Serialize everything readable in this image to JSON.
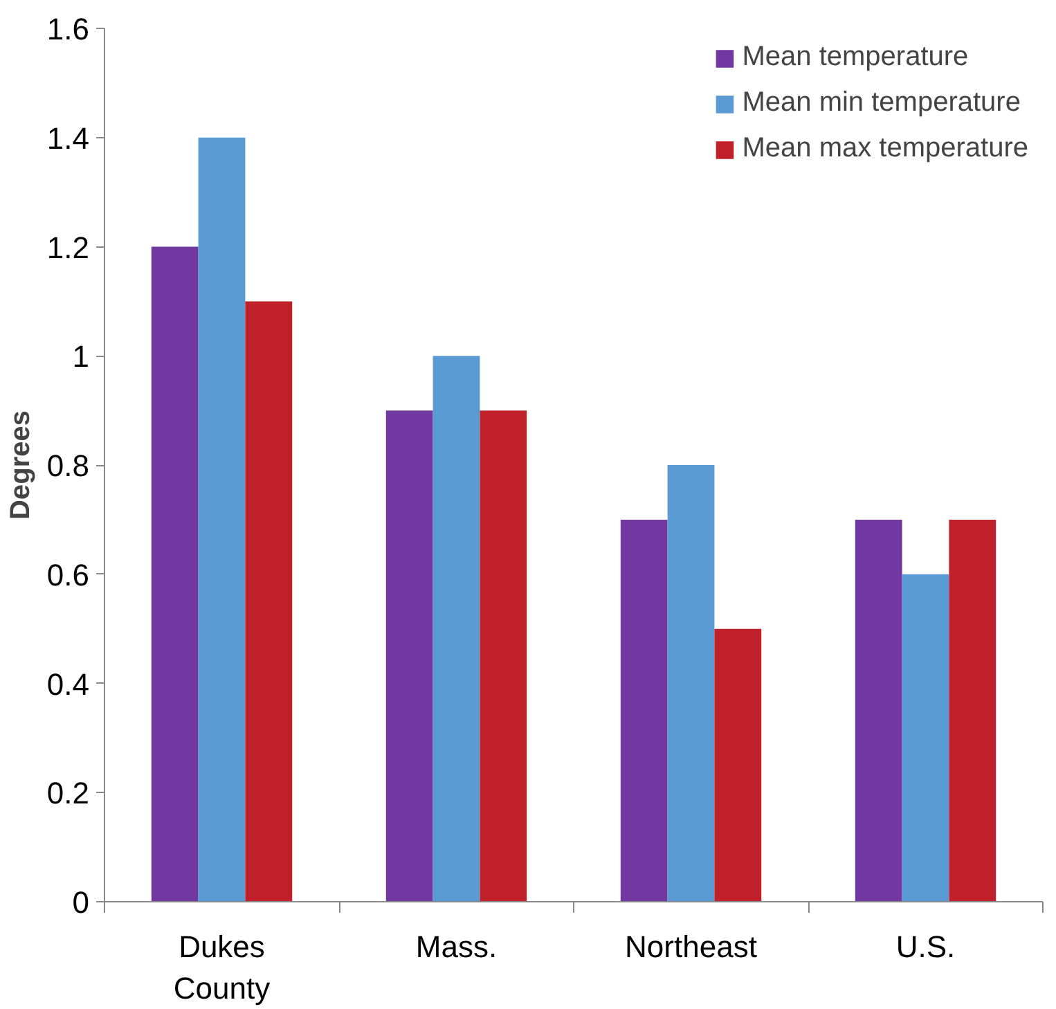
{
  "chart_data": {
    "type": "bar",
    "ylabel": "Degrees",
    "categories": [
      "Dukes County",
      "Mass.",
      "Northeast",
      "U.S."
    ],
    "series": [
      {
        "name": "Mean temperature",
        "color": "#7038a0",
        "values": [
          1.2,
          0.9,
          0.7,
          0.7
        ]
      },
      {
        "name": "Mean min temperature",
        "color": "#5b9bd5",
        "values": [
          1.4,
          1.0,
          0.8,
          0.6
        ]
      },
      {
        "name": "Mean max temperature",
        "color": "#c0202a",
        "values": [
          1.1,
          0.9,
          0.5,
          0.7
        ]
      }
    ],
    "ylim": [
      0,
      1.6
    ],
    "yticks": [
      0,
      0.2,
      0.4,
      0.6,
      0.8,
      1,
      1.2,
      1.4,
      1.6
    ],
    "grid": false,
    "legend": "top right"
  }
}
